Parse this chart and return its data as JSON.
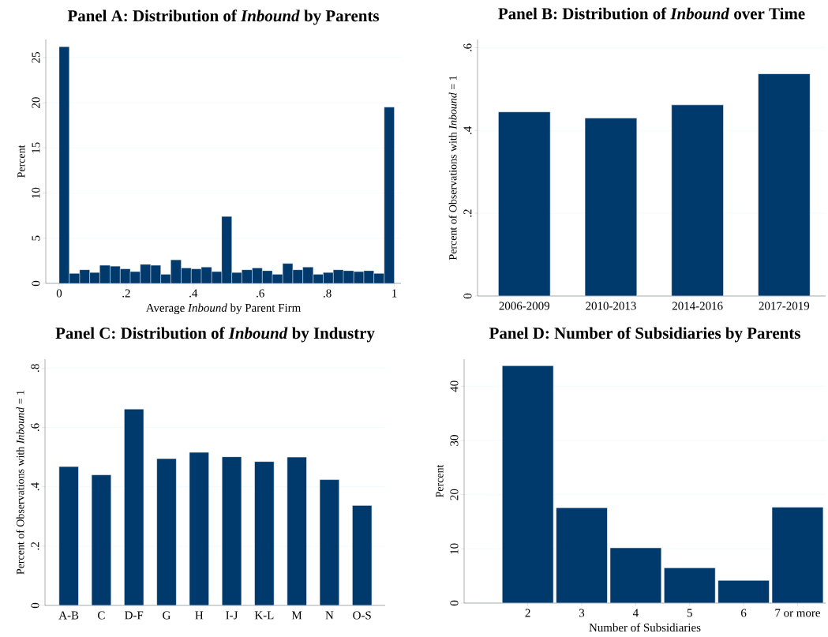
{
  "chart_data": [
    {
      "type": "histogram",
      "title": "Panel A: Distribution of *Inbound* by Parents",
      "xlabel": "Average *Inbound* by Parent Firm",
      "ylabel": "Percent",
      "bins": [
        0,
        0.03,
        0.061,
        0.091,
        0.121,
        0.152,
        0.182,
        0.212,
        0.242,
        0.273,
        0.303,
        0.333,
        0.364,
        0.394,
        0.424,
        0.455,
        0.485,
        0.515,
        0.545,
        0.576,
        0.606,
        0.636,
        0.667,
        0.697,
        0.727,
        0.758,
        0.788,
        0.818,
        0.848,
        0.879,
        0.909,
        0.939,
        0.97,
        1
      ],
      "values": [
        26.2,
        1.1,
        1.5,
        1.2,
        2.0,
        1.9,
        1.6,
        1.3,
        2.1,
        2.0,
        1.0,
        2.6,
        1.7,
        1.6,
        1.8,
        1.3,
        7.4,
        1.2,
        1.5,
        1.7,
        1.4,
        1.0,
        2.2,
        1.5,
        1.8,
        1.0,
        1.2,
        1.5,
        1.4,
        1.3,
        1.4,
        1.1,
        19.5
      ],
      "color": "#00396b",
      "xlim": [
        -0.04,
        1.02
      ],
      "ylim": [
        0,
        27
      ],
      "xticks": [
        0,
        {
          "value": 0.2,
          "label": ".2"
        },
        {
          "value": 0.4,
          "label": ".4"
        },
        {
          "value": 0.6,
          "label": ".6"
        },
        {
          "value": 0.8,
          "label": ".8"
        },
        1
      ],
      "yticks": [
        0,
        5,
        10,
        15,
        20,
        25
      ],
      "grid": "y"
    },
    {
      "type": "bar",
      "title": "Panel B: Distribution of *Inbound* over Time",
      "ylabel": "Percent of Observations with *Inbound* = 1",
      "categories": [
        "2006-2009",
        "2010-2013",
        "2014-2016",
        "2017-2019"
      ],
      "values": [
        0.445,
        0.43,
        0.462,
        0.537
      ],
      "color": "#00396b",
      "ylim": [
        0,
        0.62
      ],
      "yticks": [
        0,
        {
          "value": 0.2,
          "label": ".2"
        },
        {
          "value": 0.4,
          "label": ".4"
        },
        {
          "value": 0.6,
          "label": ".6"
        }
      ],
      "grid": "y"
    },
    {
      "type": "bar",
      "title": "Panel C: Distribution of *Inbound* by Industry",
      "ylabel": "Percent of Observations with *Inbound* = 1",
      "categories": [
        "A-B",
        "C",
        "D-F",
        "G",
        "H",
        "I-J",
        "K-L",
        "M",
        "N",
        "O-S"
      ],
      "values": [
        0.468,
        0.44,
        0.662,
        0.495,
        0.516,
        0.501,
        0.485,
        0.5,
        0.424,
        0.337
      ],
      "color": "#00396b",
      "ylim": [
        0,
        0.83
      ],
      "yticks": [
        0,
        {
          "value": 0.2,
          "label": ".2"
        },
        {
          "value": 0.4,
          "label": ".4"
        },
        {
          "value": 0.6,
          "label": ".6"
        },
        {
          "value": 0.8,
          "label": ".8"
        }
      ],
      "grid": "y"
    },
    {
      "type": "bar",
      "title": "Panel D: Number of Subsidiaries by Parents",
      "xlabel": "Number of Subsidiaries",
      "ylabel": "Percent",
      "categories": [
        "2",
        "3",
        "4",
        "5",
        "6",
        "7 or more"
      ],
      "values": [
        43.8,
        17.6,
        10.2,
        6.5,
        4.2,
        17.7
      ],
      "color": "#00396b",
      "ylim": [
        0,
        45
      ],
      "yticks": [
        0,
        10,
        20,
        30,
        40
      ],
      "grid": "y"
    }
  ]
}
